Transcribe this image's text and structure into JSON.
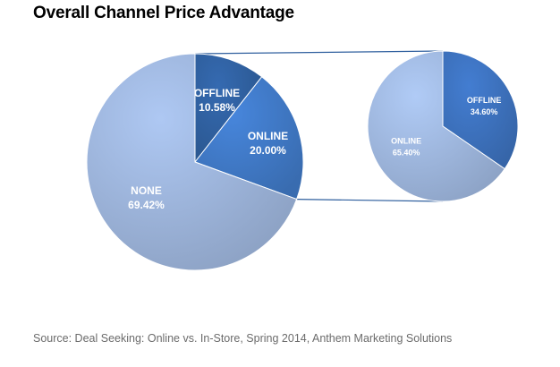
{
  "chart_data": {
    "type": "pie",
    "title": "Overall Channel Price Advantage",
    "pies": [
      {
        "slices": [
          {
            "label": "OFFLINE",
            "value": 10.58,
            "display": "10.58%",
            "color": "#2f5f9e"
          },
          {
            "label": "ONLINE",
            "value": 20.0,
            "display": "20.00%",
            "color": "#3f78c4"
          },
          {
            "label": "NONE",
            "value": 69.42,
            "display": "69.42%",
            "color": "#9bb3d9"
          }
        ]
      },
      {
        "slices": [
          {
            "label": "OFFLINE",
            "value": 34.6,
            "display": "34.60%",
            "color": "#3c70bb"
          },
          {
            "label": "ONLINE",
            "value": 65.4,
            "display": "65.40%",
            "color": "#9db5dc"
          }
        ]
      }
    ],
    "connector_color": "#2f5f9e",
    "source": "Source: Deal Seeking: Online vs. In-Store, Spring 2014, Anthem Marketing Solutions"
  }
}
